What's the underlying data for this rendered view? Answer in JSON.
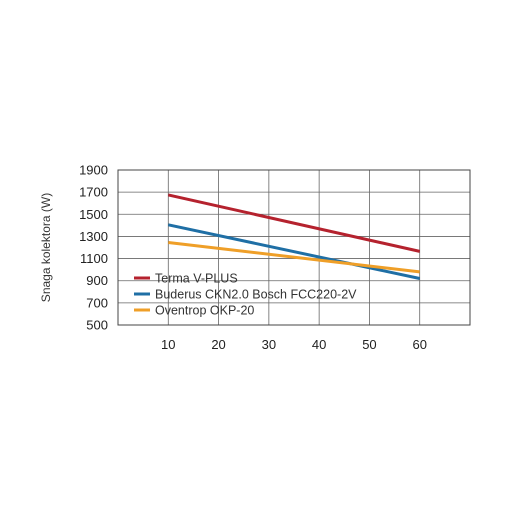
{
  "chart_data": {
    "type": "line",
    "title": "",
    "xlabel": "",
    "ylabel": "Snaga kolektora (W)",
    "x": [
      10,
      60
    ],
    "xlim": [
      0,
      70
    ],
    "ylim": [
      500,
      1900
    ],
    "xticks": [
      10,
      20,
      30,
      40,
      50,
      60
    ],
    "yticks": [
      500,
      700,
      900,
      1100,
      1300,
      1500,
      1700,
      1900
    ],
    "grid": true,
    "legend_position": "bottom-left",
    "series": [
      {
        "name": "Terma V-PLUS",
        "color": "#b5222e",
        "values": [
          1675,
          1165
        ]
      },
      {
        "name": "Buderus CKN2.0 Bosch FCC220-2V",
        "color": "#1f6fa5",
        "values": [
          1405,
          920
        ]
      },
      {
        "name": "Oventrop OKP-20",
        "color": "#ef9f28",
        "values": [
          1245,
          980
        ]
      }
    ]
  }
}
